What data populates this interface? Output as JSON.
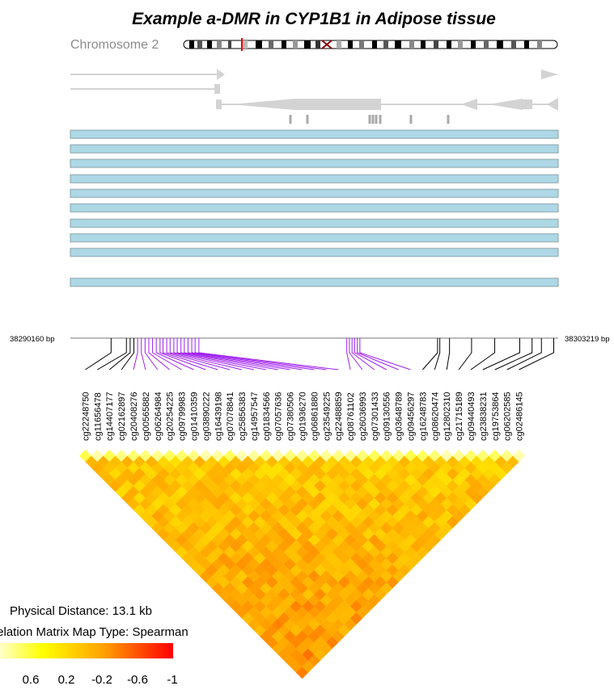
{
  "title": "Example a-DMR in CYP1B1 in Adipose tissue",
  "chromosome_label": "Chromosome 2",
  "start_bp_label": "38290160 bp",
  "end_bp_label": "38303219 bp",
  "distance_label": "Physical Distance: 13.1 kb",
  "map_type_label": "Correlation Matrix Map Type: Spearman",
  "colors": {
    "track": "#add8e6",
    "track_border": "#8aa0a8",
    "gene": "#d3d3d3",
    "ideogram_marker": "#ff0000",
    "highlight": "#a020f0"
  },
  "chart_data": {
    "type": "heatmap",
    "title": "Example a-DMR in CYP1B1 in Adipose tissue",
    "chromosome": "Chromosome 2",
    "region_start_bp": 38290160,
    "region_end_bp": 38303219,
    "physical_distance": "13.1 kb",
    "map_type": "Spearman",
    "color_scale": {
      "ticks": [
        "0.6",
        "0.2",
        "-0.2",
        "-0.6",
        "-1"
      ],
      "colors": [
        "#ffffc8",
        "#ffff00",
        "#ff8000",
        "#ff0000"
      ]
    },
    "probes": [
      "cg22248750",
      "cg11656478",
      "cg14407177",
      "cg02162897",
      "cg20408276",
      "cg00565882",
      "cg06264984",
      "cg20254225",
      "cg09799983",
      "cg01410359",
      "cg03890222",
      "cg16439198",
      "cg07078841",
      "cg25856383",
      "cg14957547",
      "cg01834566",
      "cg07057636",
      "cg07380506",
      "cg01936270",
      "cg06861880",
      "cg23549225",
      "cg22488859",
      "cg08761102",
      "cg26036993",
      "cg07301433",
      "cg09130556",
      "cg03648789",
      "cg09456297",
      "cg16248783",
      "cg08620474",
      "cg12802310",
      "cg21715189",
      "cg09440493",
      "cg23838231",
      "cg19753864",
      "cg06202585",
      "cg02486145"
    ]
  }
}
